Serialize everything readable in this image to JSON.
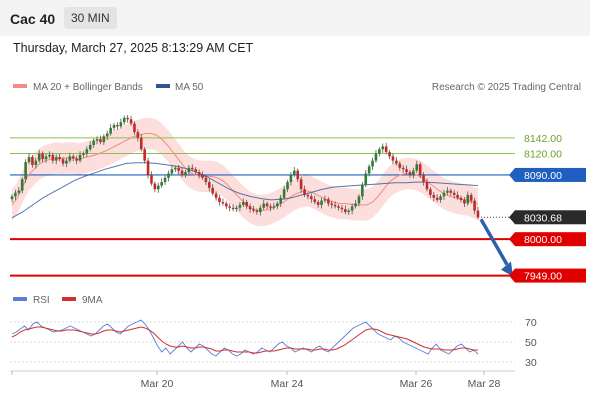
{
  "header": {
    "instrument": "Cac 40",
    "interval": "30 MIN"
  },
  "timestamp": "Thursday, March 27, 2025 8:13:29 AM CET",
  "legend": {
    "ma20_label": "MA 20 + Bollinger Bands",
    "ma50_label": "MA 50",
    "copyright": "Research © 2025 Trading Central"
  },
  "rsi_legend": {
    "rsi_label": "RSI",
    "ma_label": "9MA"
  },
  "colors": {
    "ma20": "#f28b82",
    "ma50": "#2f5597",
    "band_fill": "#fbd3d0",
    "up": "#2e7d32",
    "down": "#c62828",
    "resistance": "#8bc34a",
    "support": "#e00000",
    "current": "#1f5fbf",
    "rsi": "#5b7fd6",
    "rsi_ma": "#d32f2f",
    "arrow": "#2e5fa8"
  },
  "chart_data": [
    {
      "type": "candlestick",
      "title": "Cac 40",
      "interval": "30 MIN",
      "x_labels": [
        "Mar 20",
        "Mar 24",
        "Mar 26",
        "Mar 28"
      ],
      "ylim": [
        7940,
        8195
      ],
      "price_levels": [
        {
          "label": "8142.00",
          "value": 8142.0,
          "kind": "resistance"
        },
        {
          "label": "8120.00",
          "value": 8120.0,
          "kind": "resistance"
        },
        {
          "label": "8090.00",
          "value": 8090.0,
          "kind": "pivot"
        },
        {
          "label": "8030.68",
          "value": 8030.68,
          "kind": "last"
        },
        {
          "label": "8000.00",
          "value": 8000.0,
          "kind": "support"
        },
        {
          "label": "7949.00",
          "value": 7949.0,
          "kind": "support"
        }
      ],
      "forecast": {
        "from": 8030.68,
        "to": 7949.0
      },
      "series": [
        {
          "name": "Cac 40",
          "values": [
            8060,
            8065,
            8068,
            8084,
            8108,
            8115,
            8104,
            8110,
            8120,
            8112,
            8116,
            8118,
            8110,
            8115,
            8112,
            8106,
            8110,
            8116,
            8113,
            8110,
            8118,
            8120,
            8126,
            8132,
            8138,
            8140,
            8136,
            8144,
            8148,
            8156,
            8160,
            8158,
            8164,
            8170,
            8168,
            8162,
            8150,
            8142,
            8126,
            8110,
            8090,
            8078,
            8070,
            8075,
            8080,
            8086,
            8092,
            8098,
            8100,
            8096,
            8090,
            8094,
            8100,
            8098,
            8094,
            8090,
            8086,
            8080,
            8072,
            8064,
            8058,
            8052,
            8050,
            8046,
            8044,
            8042,
            8044,
            8048,
            8052,
            8046,
            8042,
            8040,
            8038,
            8044,
            8050,
            8046,
            8044,
            8046,
            8050,
            8058,
            8070,
            8080,
            8090,
            8096,
            8084,
            8070,
            8062,
            8060,
            8056,
            8052,
            8048,
            8054,
            8056,
            8050,
            8048,
            8046,
            8044,
            8042,
            8038,
            8040,
            8046,
            8050,
            8060,
            8076,
            8092,
            8102,
            8110,
            8120,
            8126,
            8130,
            8122,
            8116,
            8110,
            8106,
            8100,
            8098,
            8094,
            8090,
            8096,
            8105,
            8090,
            8080,
            8070,
            8062,
            8058,
            8055,
            8060,
            8065,
            8068,
            8065,
            8062,
            8058,
            8055,
            8050,
            8062,
            8054,
            8040,
            8030.68
          ]
        },
        {
          "name": "MA 20",
          "values": [
            8048,
            8058,
            8075,
            8090,
            8098,
            8106,
            8110,
            8112,
            8114,
            8113,
            8114,
            8114,
            8112,
            8114,
            8116,
            8118,
            8121,
            8124,
            8128,
            8132,
            8136,
            8140,
            8144,
            8146,
            8148,
            8148,
            8146,
            8140,
            8132,
            8122,
            8112,
            8102,
            8094,
            8090,
            8088,
            8088,
            8088,
            8086,
            8082,
            8075,
            8066,
            8058,
            8050,
            8044,
            8041,
            8040,
            8041,
            8044,
            8048,
            8052,
            8058,
            8063,
            8066,
            8068,
            8066,
            8062,
            8058,
            8054,
            8052,
            8050,
            8050,
            8049,
            8048,
            8048,
            8048,
            8052,
            8060,
            8070,
            8080,
            8086,
            8090,
            8092,
            8092,
            8090,
            8086,
            8080,
            8074,
            8068,
            8063,
            8060,
            8058,
            8056,
            8055,
            8052,
            8049
          ]
        },
        {
          "name": "MA 50",
          "values": [
            8030,
            8038,
            8048,
            8058,
            8066,
            8074,
            8082,
            8088,
            8093,
            8098,
            8102,
            8106,
            8107,
            8107,
            8106,
            8104,
            8102,
            8098,
            8093,
            8086,
            8078,
            8070,
            8064,
            8060,
            8057,
            8055,
            8056,
            8058,
            8062,
            8066,
            8070,
            8073,
            8074,
            8075,
            8076,
            8077,
            8078,
            8079,
            8079,
            8080,
            8080,
            8079,
            8078,
            8077,
            8076,
            8075
          ]
        }
      ]
    },
    {
      "type": "line",
      "title": "RSI",
      "ylim": [
        25,
        78
      ],
      "y_ticks": [
        "70",
        "50",
        "30"
      ],
      "series": [
        {
          "name": "RSI",
          "values": [
            58,
            60,
            63,
            66,
            62,
            68,
            70,
            66,
            64,
            62,
            60,
            61,
            62,
            64,
            66,
            64,
            62,
            60,
            58,
            56,
            58,
            62,
            66,
            68,
            64,
            60,
            58,
            62,
            66,
            68,
            70,
            72,
            68,
            62,
            54,
            46,
            40,
            44,
            38,
            42,
            46,
            50,
            44,
            40,
            44,
            48,
            46,
            42,
            38,
            36,
            40,
            44,
            42,
            38,
            36,
            38,
            42,
            40,
            38,
            40,
            44,
            42,
            40,
            44,
            48,
            50,
            46,
            44,
            40,
            42,
            44,
            42,
            40,
            44,
            46,
            42,
            40,
            44,
            48,
            52,
            56,
            60,
            64,
            66,
            68,
            70,
            66,
            62,
            58,
            56,
            54,
            52,
            56,
            54,
            50,
            48,
            46,
            44,
            42,
            40,
            38,
            44,
            48,
            42,
            40,
            38,
            42,
            46,
            48,
            44,
            40,
            42,
            38
          ]
        },
        {
          "name": "9MA",
          "values": [
            55,
            57,
            60,
            62,
            63,
            64,
            65,
            65,
            64,
            63,
            62,
            61,
            61,
            62,
            62,
            62,
            61,
            60,
            59,
            58,
            58,
            59,
            61,
            62,
            62,
            61,
            60,
            61,
            62,
            63,
            64,
            65,
            64,
            62,
            59,
            55,
            51,
            48,
            46,
            45,
            45,
            46,
            45,
            44,
            44,
            45,
            45,
            44,
            43,
            41,
            41,
            42,
            42,
            41,
            40,
            40,
            40,
            40,
            39,
            39,
            40,
            41,
            41,
            41,
            42,
            43,
            44,
            44,
            43,
            43,
            43,
            43,
            42,
            42,
            43,
            43,
            42,
            42,
            43,
            45,
            47,
            50,
            53,
            56,
            59,
            62,
            63,
            63,
            62,
            60,
            58,
            57,
            56,
            55,
            54,
            53,
            51,
            49,
            47,
            45,
            44,
            43,
            43,
            43,
            42,
            42,
            42,
            43,
            44,
            44,
            43,
            42,
            42
          ]
        }
      ]
    }
  ]
}
